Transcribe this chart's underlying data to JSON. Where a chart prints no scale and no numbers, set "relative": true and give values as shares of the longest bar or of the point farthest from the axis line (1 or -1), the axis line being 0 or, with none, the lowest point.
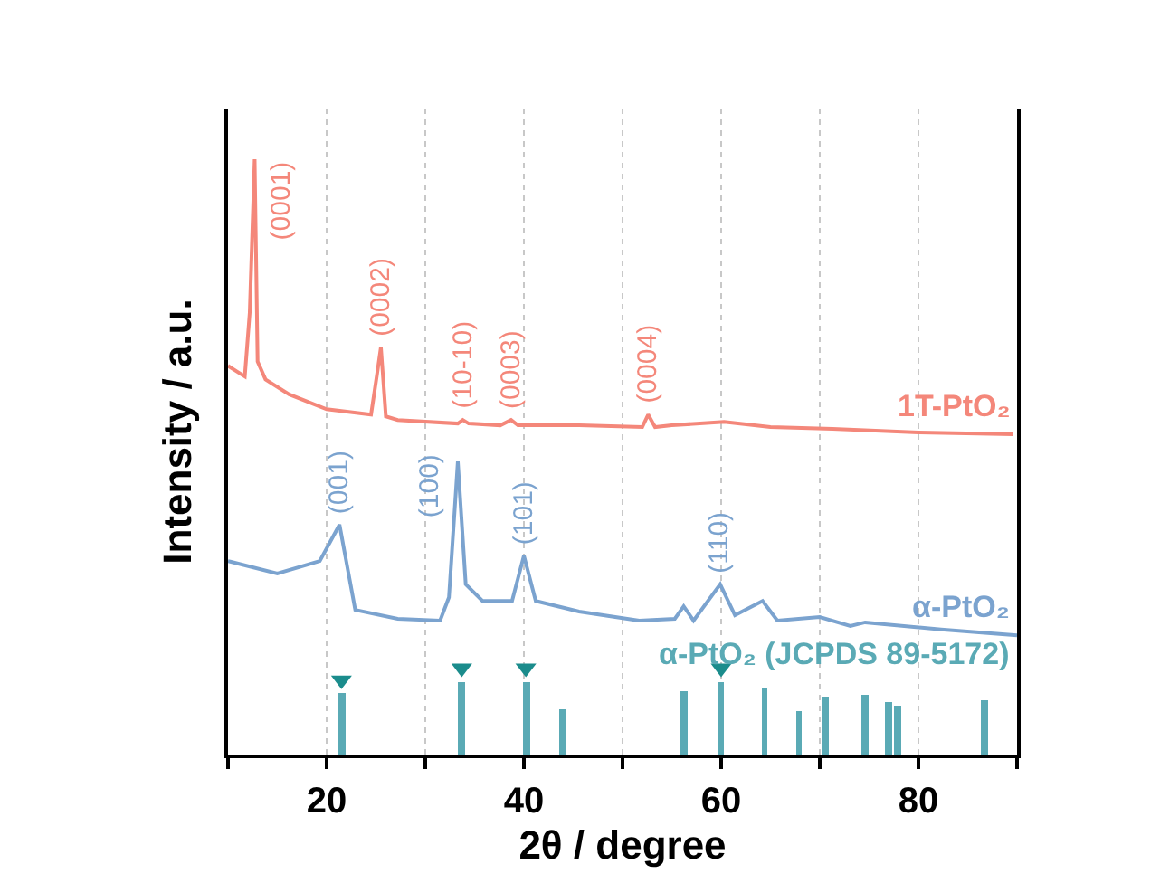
{
  "chart_data": {
    "type": "line",
    "relative": true,
    "xlabel": "2θ / degree",
    "ylabel": "Intensity / a.u.",
    "xlim": [
      10,
      90
    ],
    "xticks": [
      {
        "value": 10,
        "label": null
      },
      20,
      {
        "value": 30,
        "label": null
      },
      40,
      {
        "value": 50,
        "label": null
      },
      60,
      {
        "value": 70,
        "label": null
      },
      80,
      {
        "value": 90,
        "label": null
      }
    ],
    "grid": "x",
    "series": [
      {
        "name": "1T-PtO₂",
        "color": "#f4877a",
        "x": [
          10,
          11.7,
          12.2,
          12.7,
          13.0,
          13.8,
          16.2,
          20,
          24.5,
          25.1,
          25.5,
          26.0,
          27.2,
          33.3,
          33.8,
          34.4,
          37.6,
          38.7,
          39.4,
          45.6,
          52.0,
          52.6,
          53.3,
          55.0,
          60.3,
          65.0,
          71.3,
          80.0,
          89.6
        ],
        "values": [
          0.653,
          0.635,
          0.742,
          1,
          0.66,
          0.63,
          0.605,
          0.58,
          0.571,
          0.638,
          0.684,
          0.568,
          0.562,
          0.556,
          0.562,
          0.556,
          0.553,
          0.562,
          0.553,
          0.553,
          0.55,
          0.571,
          0.55,
          0.553,
          0.559,
          0.55,
          0.547,
          0.541,
          0.538
        ]
      },
      {
        "name": "α-PtO₂",
        "color": "#7ba3cf",
        "x": [
          10,
          15.0,
          19.3,
          21.3,
          22.9,
          27.2,
          31.5,
          32.4,
          33.3,
          34.1,
          35.8,
          38.8,
          40.0,
          41.2,
          45.6,
          51.7,
          55.3,
          56.2,
          57.2,
          59.9,
          61.4,
          64.2,
          65.7,
          70.0,
          73.1,
          74.6,
          82.3,
          90
        ],
        "values": [
          0.325,
          0.304,
          0.325,
          0.386,
          0.243,
          0.228,
          0.225,
          0.264,
          0.492,
          0.286,
          0.258,
          0.258,
          0.334,
          0.258,
          0.24,
          0.225,
          0.228,
          0.249,
          0.225,
          0.286,
          0.234,
          0.258,
          0.225,
          0.231,
          0.216,
          0.222,
          0.21,
          0.2
        ]
      },
      {
        "name": "α-PtO₂ (JCPDS 89-5172)",
        "type": "bar",
        "color": "#5aaab5",
        "x": [
          21.5,
          33.7,
          40.2,
          43.9,
          56.2,
          60.0,
          64.4,
          67.9,
          70.6,
          74.6,
          77.0,
          77.9,
          86.7
        ],
        "values": [
          0.103,
          0.122,
          0.122,
          0.076,
          0.106,
          0.122,
          0.112,
          0.073,
          0.097,
          0.1,
          0.088,
          0.082,
          0.09
        ]
      },
      {
        "type": "scatter",
        "marker": "triangle",
        "color": "#1b8c8c",
        "x": [
          21.5,
          33.7,
          40.2,
          60.0
        ],
        "values": [
          0.125,
          0.145,
          0.145,
          0.145
        ]
      }
    ],
    "annotations": [
      {
        "text": "(0001)",
        "x": 12.7,
        "y": 1
      },
      {
        "text": "(0002)",
        "x": 25.5,
        "y": 0.684
      },
      {
        "text": "(10-10)",
        "x": 33.8,
        "y": 0.562
      },
      {
        "text": "(0003)",
        "x": 38.7,
        "y": 0.562
      },
      {
        "text": "(0004)",
        "x": 52.6,
        "y": 0.571
      },
      {
        "text": "(001)",
        "x": 21.3,
        "y": 0.386
      },
      {
        "text": "(100)",
        "x": 33.3,
        "y": 0.492
      },
      {
        "text": "(101)",
        "x": 40.0,
        "y": 0.334
      },
      {
        "text": "(110)",
        "x": 59.9,
        "y": 0.286
      }
    ]
  }
}
